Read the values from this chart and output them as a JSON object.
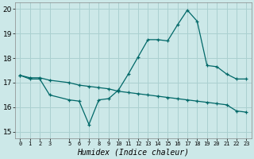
{
  "title": "",
  "xlabel": "Humidex (Indice chaleur)",
  "ylabel": "",
  "background_color": "#cce8e8",
  "grid_color": "#aad0d0",
  "line_color": "#006868",
  "xlim": [
    -0.5,
    23.5
  ],
  "ylim": [
    14.75,
    20.25
  ],
  "yticks": [
    15,
    16,
    17,
    18,
    19,
    20
  ],
  "xticks": [
    0,
    1,
    2,
    3,
    5,
    6,
    7,
    8,
    9,
    10,
    11,
    12,
    13,
    14,
    15,
    16,
    17,
    18,
    19,
    20,
    21,
    22,
    23
  ],
  "line1_x": [
    0,
    1,
    2,
    3,
    5,
    6,
    7,
    8,
    9,
    10,
    11,
    12,
    13,
    14,
    15,
    16,
    17,
    18,
    19,
    20,
    21,
    22,
    23
  ],
  "line1_y": [
    17.3,
    17.15,
    17.15,
    16.5,
    16.3,
    16.25,
    15.3,
    16.3,
    16.35,
    16.7,
    17.35,
    18.05,
    18.75,
    18.75,
    18.7,
    19.35,
    19.95,
    19.5,
    17.7,
    17.65,
    17.35,
    17.15,
    17.15
  ],
  "line2_x": [
    0,
    1,
    2,
    3,
    5,
    6,
    7,
    8,
    9,
    10,
    11,
    12,
    13,
    14,
    15,
    16,
    17,
    18,
    19,
    20,
    21,
    22,
    23
  ],
  "line2_y": [
    17.3,
    17.2,
    17.2,
    17.1,
    17.0,
    16.9,
    16.85,
    16.8,
    16.75,
    16.65,
    16.6,
    16.55,
    16.5,
    16.45,
    16.4,
    16.35,
    16.3,
    16.25,
    16.2,
    16.15,
    16.1,
    15.85,
    15.8
  ]
}
